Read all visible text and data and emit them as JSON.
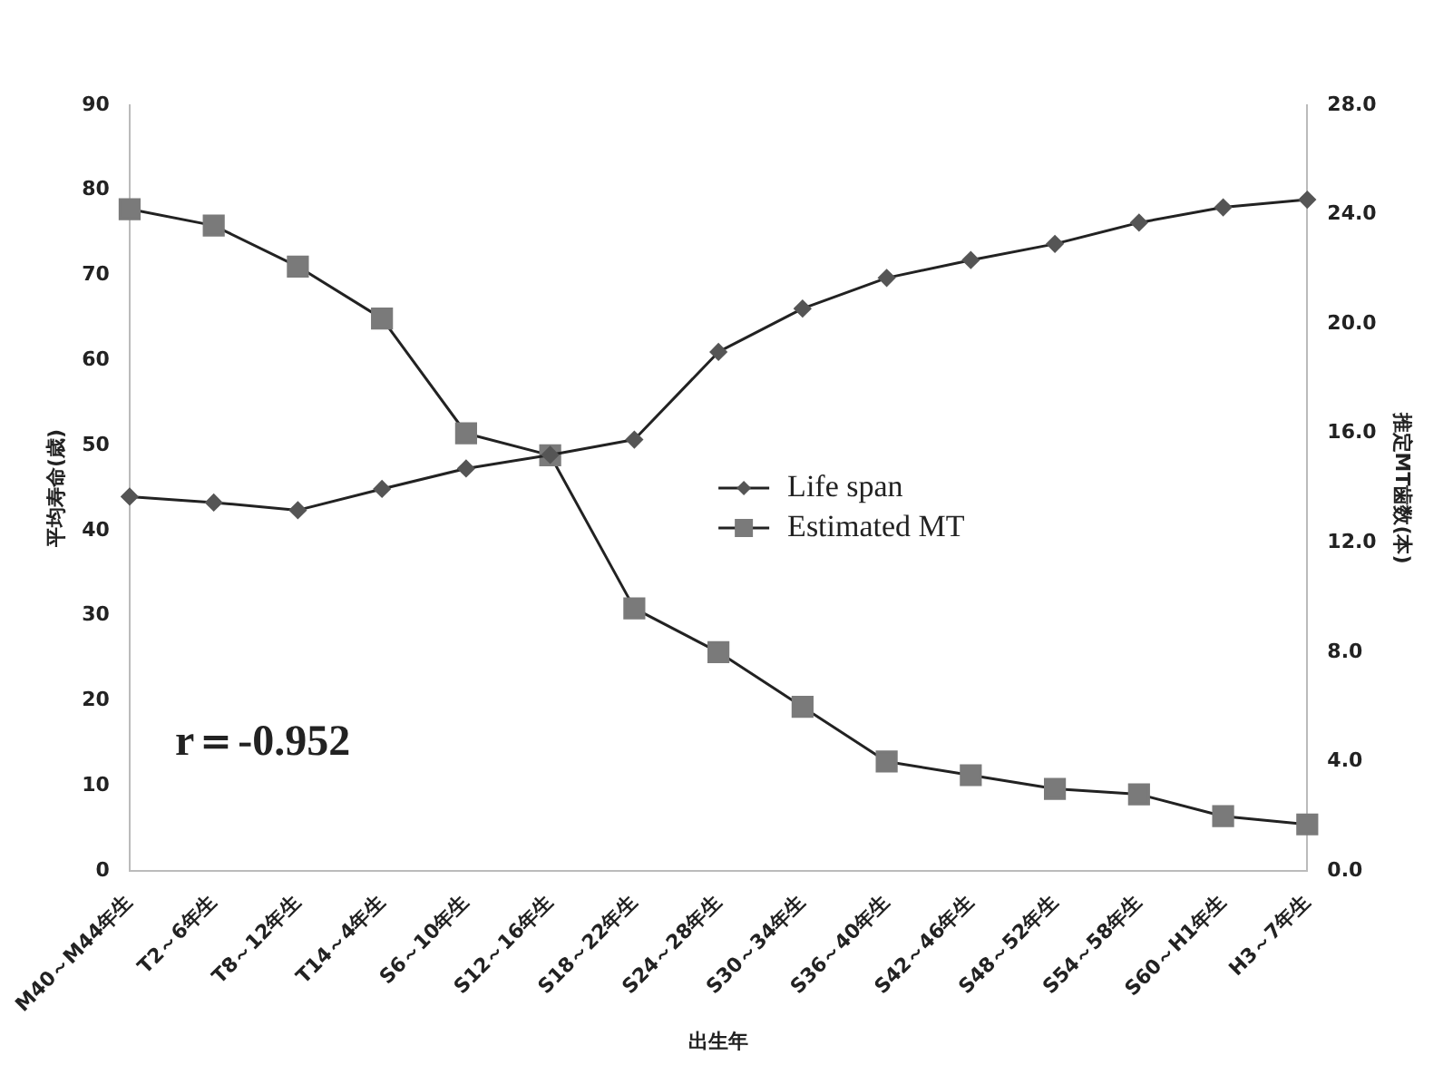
{
  "chart_data": {
    "type": "line",
    "xlabel": "出生年",
    "ylabel": "平均寿命(歳)",
    "y2label": "推定MT歯数(本)",
    "categories": [
      "M40～M44年生",
      "T2～6年生",
      "T8～12年生",
      "T14～4年生",
      "S6～10年生",
      "S12～16年生",
      "S18～22年生",
      "S24～28年生",
      "S30～34年生",
      "S36～40年生",
      "S42～46年生",
      "S48～52年生",
      "S54～58年生",
      "S60～H1年生",
      "H3～7年生"
    ],
    "series": [
      {
        "name": "Life span",
        "color": "#555555",
        "marker": "diamond",
        "values": [
          44.0,
          43.3,
          42.4,
          44.9,
          47.3,
          48.9,
          50.7,
          61.0,
          66.1,
          69.7,
          71.8,
          73.7,
          76.2,
          78.0,
          78.9
        ]
      },
      {
        "name": "Estimated MT",
        "color": "#7a7a7a",
        "marker": "square",
        "axis": "y2",
        "values": [
          24.2,
          23.6,
          22.1,
          20.2,
          16.0,
          15.2,
          9.6,
          8.0,
          6.0,
          4.0,
          3.5,
          3.0,
          2.8,
          2.0,
          1.7
        ]
      }
    ],
    "ylim": [
      0,
      90
    ],
    "yticks": [
      0,
      10,
      20,
      30,
      40,
      50,
      60,
      70,
      80,
      90
    ],
    "y2lim": [
      0,
      28
    ],
    "y2ticks": [
      {
        "value": 0,
        "label": "0.0"
      },
      {
        "value": 4,
        "label": "4.0"
      },
      {
        "value": 8,
        "label": "8.0"
      },
      {
        "value": 12,
        "label": "12.0"
      },
      {
        "value": 16,
        "label": "16.0"
      },
      {
        "value": 20,
        "label": "20.0"
      },
      {
        "value": 24,
        "label": "24.0"
      },
      {
        "value": 28,
        "label": "28.0"
      }
    ],
    "grid": false,
    "legend": "center",
    "line_style": "solid",
    "annotations": [
      "r＝-0.952"
    ]
  }
}
